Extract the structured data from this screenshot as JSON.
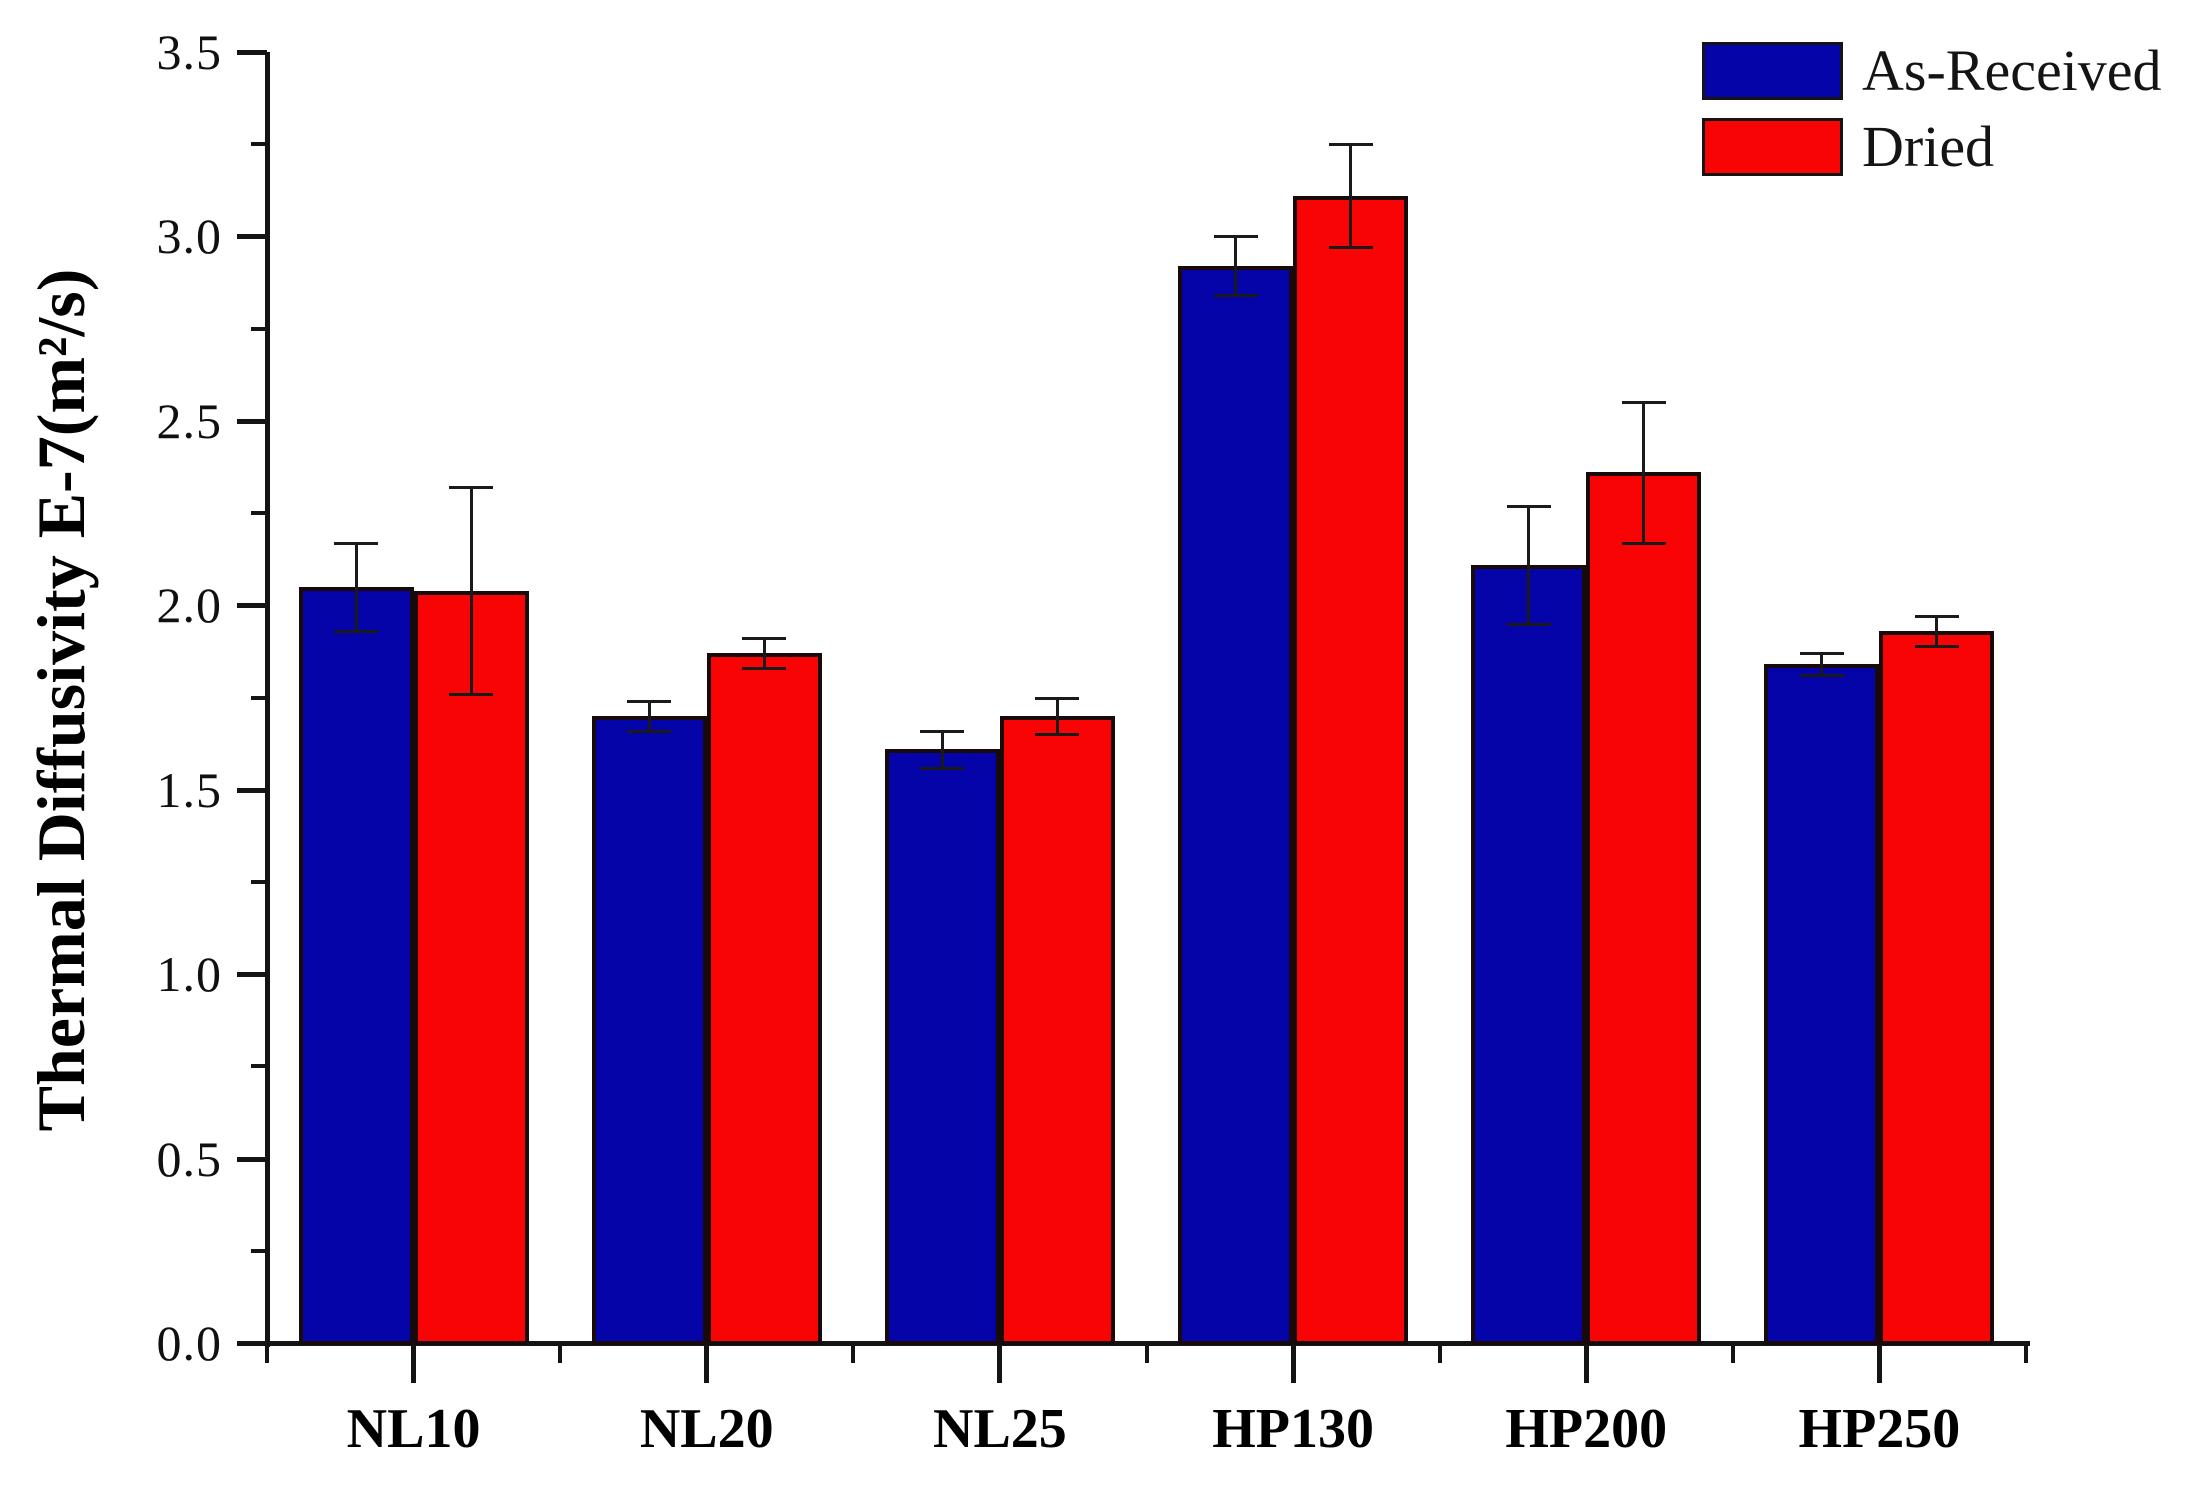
{
  "figure": {
    "background": "#ffffff",
    "text_color": "#000000"
  },
  "legend": {
    "position": "top-right",
    "items": [
      {
        "label": "As-Received",
        "color": "#0404A8"
      },
      {
        "label": "Dried",
        "color": "#F90404"
      }
    ]
  },
  "chart_data": {
    "type": "bar",
    "title": "",
    "xlabel": "",
    "ylabel": "Thermal Diffusivity E-7(m²/s)",
    "categories": [
      "NL10",
      "NL20",
      "NL25",
      "HP130",
      "HP200",
      "HP250"
    ],
    "series": [
      {
        "name": "As-Received",
        "color": "#0404A8",
        "values": [
          2.05,
          1.7,
          1.61,
          2.92,
          2.11,
          1.84
        ],
        "errors": [
          0.12,
          0.04,
          0.05,
          0.08,
          0.16,
          0.03
        ]
      },
      {
        "name": "Dried",
        "color": "#F90404",
        "values": [
          2.04,
          1.87,
          1.7,
          3.11,
          2.36,
          1.93
        ],
        "errors": [
          0.28,
          0.04,
          0.05,
          0.14,
          0.19,
          0.04
        ]
      }
    ],
    "ylim": [
      0,
      3.5
    ],
    "y_major_step": 0.5,
    "y_minor_step": 0.25,
    "y_tick_labels": [
      "0.0",
      "0.5",
      "1.0",
      "1.5",
      "2.0",
      "2.5",
      "3.0",
      "3.5"
    ],
    "grid": false,
    "error_bars": true,
    "bar_border_color": "#180a0a",
    "legend_position": "top-right"
  }
}
